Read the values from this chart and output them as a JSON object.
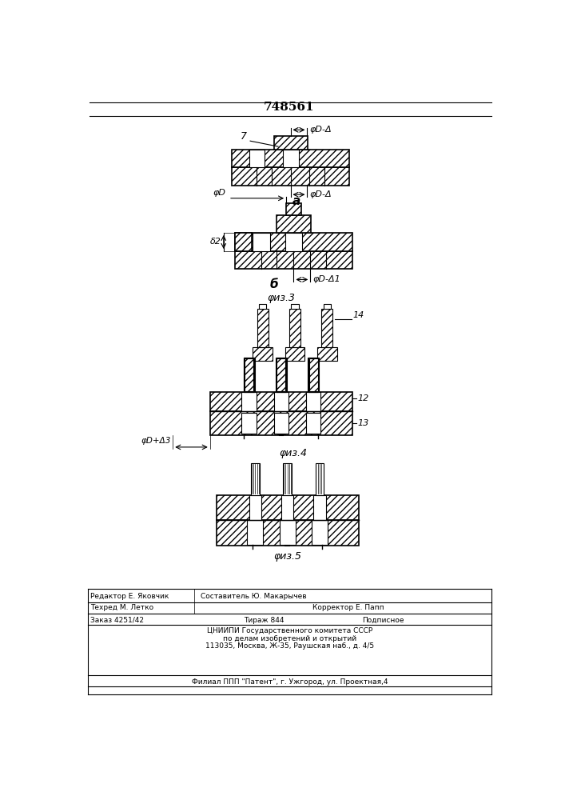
{
  "patent_number": "748561",
  "fig1_label": "a",
  "fig2_label": "б",
  "fig3_label": "φиз.3",
  "fig4_label": "φиз.4",
  "fig5_label": "φиз.5",
  "label_7": "7",
  "label_14": "14",
  "label_12": "12",
  "label_13": "13",
  "dim_phiD_A": "φD-Δ",
  "dim_phiD": "φD",
  "dim_delta2": "δ2",
  "dim_phiD_A1": "φD-Δ1",
  "dim_phiD_A3": "φD+Δ3"
}
